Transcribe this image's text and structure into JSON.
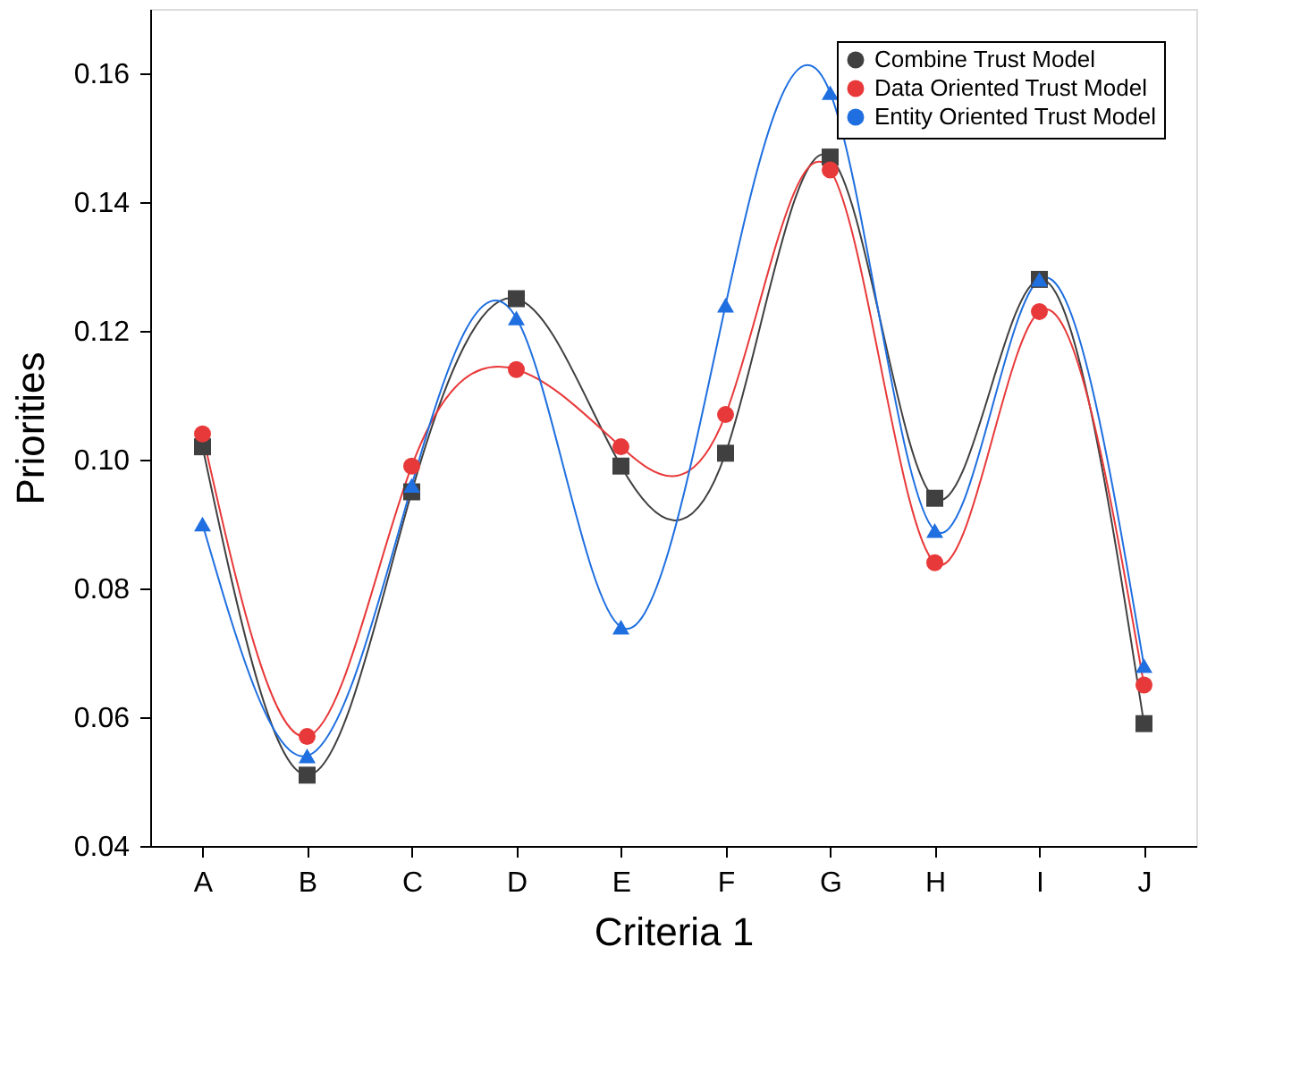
{
  "chart_data": {
    "type": "line",
    "xlabel": "Criteria 1",
    "ylabel": "Priorities",
    "categories": [
      "A",
      "B",
      "C",
      "D",
      "E",
      "F",
      "G",
      "H",
      "I",
      "J"
    ],
    "series": [
      {
        "name": "Combine Trust Model",
        "color": "#404040",
        "marker": "square",
        "values": [
          0.102,
          0.051,
          0.095,
          0.125,
          0.099,
          0.101,
          0.147,
          0.094,
          0.128,
          0.059
        ]
      },
      {
        "name": "Data Oriented Trust Model",
        "color": "#e8393a",
        "marker": "circle",
        "values": [
          0.104,
          0.057,
          0.099,
          0.114,
          0.102,
          0.107,
          0.145,
          0.084,
          0.123,
          0.065
        ]
      },
      {
        "name": "Entity Oriented Trust Model",
        "color": "#1f6fe0",
        "marker": "triangle",
        "values": [
          0.09,
          0.054,
          0.096,
          0.122,
          0.074,
          0.124,
          0.157,
          0.089,
          0.128,
          0.068
        ]
      }
    ],
    "ylim": [
      0.04,
      0.17
    ],
    "yticks": [
      0.04,
      0.06,
      0.08,
      {
        "value": 0.1,
        "label": "0.10"
      },
      0.12,
      0.14,
      0.16
    ],
    "grid": false,
    "legend": "top right",
    "line_style": "solid"
  }
}
